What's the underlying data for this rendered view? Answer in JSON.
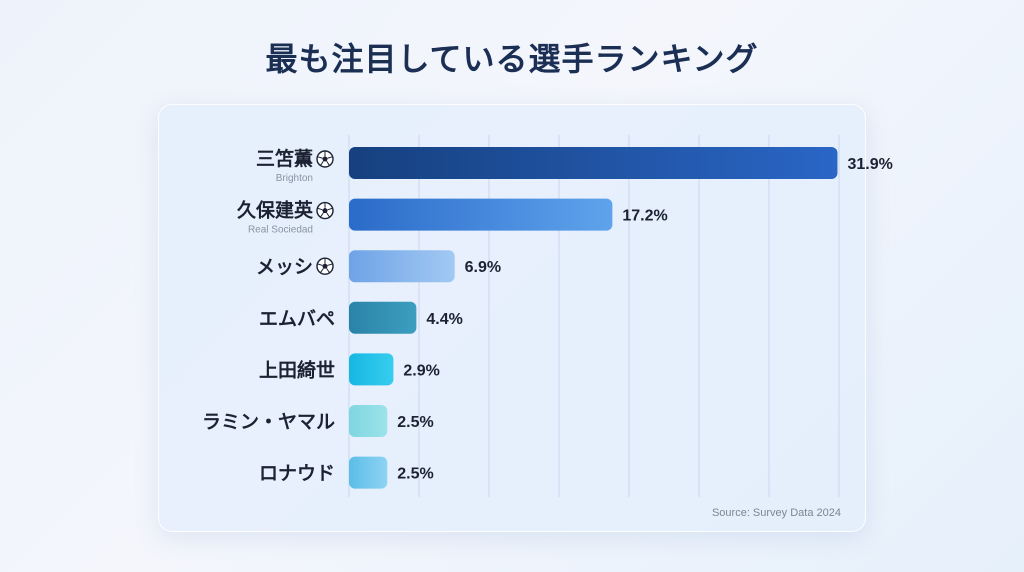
{
  "title": "最も注目している選手ランキング",
  "source": "Source: Survey Data 2024",
  "chart_data": {
    "type": "bar",
    "orientation": "horizontal",
    "categories": [
      "三笘薫",
      "久保建英",
      "メッシ",
      "エムバペ",
      "上田綺世",
      "ラミン・ヤマル",
      "ロナウド"
    ],
    "subtitles": [
      "Brighton",
      "Real Sociedad",
      "",
      "",
      "",
      "",
      ""
    ],
    "ball_icon": [
      true,
      true,
      true,
      false,
      false,
      false,
      false
    ],
    "icon": "soccer-ball-icon",
    "values": [
      31.9,
      17.2,
      6.9,
      4.4,
      2.9,
      2.5,
      2.5
    ],
    "value_labels": [
      "31.9%",
      "17.2%",
      "6.9%",
      "4.4%",
      "2.9%",
      "2.5%",
      "2.5%"
    ],
    "unit": "%",
    "colors": [
      [
        "#16407f",
        "#2a66c6"
      ],
      [
        "#2b6bc9",
        "#5fa3ec"
      ],
      [
        "#6ea3e6",
        "#a3c9f3"
      ],
      [
        "#2a83a8",
        "#3d9ec0"
      ],
      [
        "#16b7e2",
        "#36cdef"
      ],
      [
        "#7fd6e0",
        "#9ce3ea"
      ],
      [
        "#5cbde8",
        "#8ed3f3"
      ]
    ],
    "xlim": [
      0,
      32
    ],
    "grid": true,
    "xticks_visible": false
  }
}
